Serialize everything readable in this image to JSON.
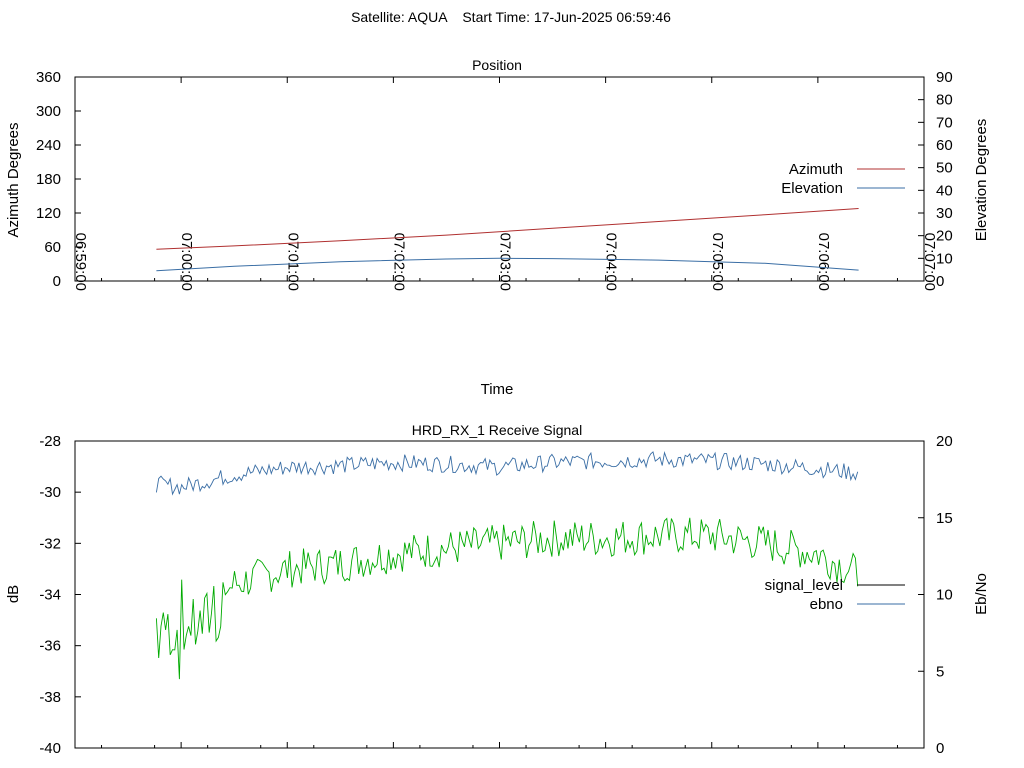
{
  "page_title": "Satellite: AQUA    Start Time: 17-Jun-2025 06:59:46",
  "chart_data": [
    {
      "type": "line",
      "title": "Position",
      "xlabel": "Time",
      "ylabel": "Azimuth Degrees",
      "y2label": "Elevation Degrees",
      "x_ticks": [
        "06:59:00",
        "07:00:00",
        "07:01:00",
        "07:02:00",
        "07:03:00",
        "07:04:00",
        "07:05:00",
        "07:06:00",
        "07:07:00"
      ],
      "xlim": [
        "06:59:00",
        "07:07:00"
      ],
      "ylim": [
        0,
        360
      ],
      "y_ticks": [
        0,
        60,
        120,
        180,
        240,
        300,
        360
      ],
      "y2lim": [
        0,
        90
      ],
      "y2_ticks": [
        0,
        10,
        20,
        30,
        40,
        50,
        60,
        70,
        80,
        90
      ],
      "legend_position": "right",
      "series": [
        {
          "name": "Azimuth",
          "axis": "y",
          "color": "#b03030",
          "x": [
            "06:59:46",
            "07:00:30",
            "07:01:30",
            "07:02:30",
            "07:03:30",
            "07:04:30",
            "07:05:30",
            "07:06:23"
          ],
          "values": [
            56,
            62,
            71,
            81,
            93,
            105,
            117,
            128
          ]
        },
        {
          "name": "Elevation",
          "axis": "y2",
          "color": "#3a6ea5",
          "x": [
            "06:59:46",
            "07:00:30",
            "07:01:30",
            "07:02:30",
            "07:03:00",
            "07:03:30",
            "07:04:30",
            "07:05:30",
            "07:06:23"
          ],
          "values": [
            4.5,
            6.5,
            8.5,
            9.7,
            10,
            9.9,
            9.2,
            7.8,
            4.8
          ]
        }
      ]
    },
    {
      "type": "line",
      "title": "HRD_RX_1 Receive Signal",
      "ylabel": "dB",
      "y2label": "Eb/No",
      "ylim": [
        -40,
        -28
      ],
      "y_ticks": [
        -40,
        -38,
        -36,
        -34,
        -32,
        -30,
        -28
      ],
      "y2lim": [
        0,
        20
      ],
      "y2_ticks": [
        0,
        5,
        10,
        15,
        20
      ],
      "legend_position": "right",
      "series": [
        {
          "name": "signal_level",
          "legend_color": "#000000",
          "color": "#00aa00",
          "axis": "y",
          "x": [
            "06:59:46",
            "07:00:00",
            "07:00:30",
            "07:01:00",
            "07:01:30",
            "07:02:00",
            "07:02:30",
            "07:03:00",
            "07:03:30",
            "07:04:00",
            "07:04:30",
            "07:05:00",
            "07:05:30",
            "07:06:00",
            "07:06:23"
          ],
          "values": [
            -34.8,
            -35.2,
            -33.6,
            -33.0,
            -32.8,
            -32.4,
            -32.2,
            -32.0,
            -31.8,
            -31.8,
            -31.7,
            -31.7,
            -32.0,
            -32.4,
            -33.2
          ]
        },
        {
          "name": "ebno",
          "color": "#3a6ea5",
          "axis": "y2",
          "x": [
            "06:59:46",
            "07:00:00",
            "07:00:30",
            "07:01:00",
            "07:01:30",
            "07:02:00",
            "07:02:30",
            "07:03:00",
            "07:03:30",
            "07:04:00",
            "07:04:30",
            "07:05:00",
            "07:05:30",
            "07:06:00",
            "07:06:23"
          ],
          "values": [
            17.2,
            17.0,
            17.8,
            18.3,
            18.4,
            18.6,
            18.5,
            18.3,
            18.6,
            18.7,
            18.8,
            18.7,
            18.5,
            18.2,
            17.9
          ]
        }
      ]
    }
  ]
}
